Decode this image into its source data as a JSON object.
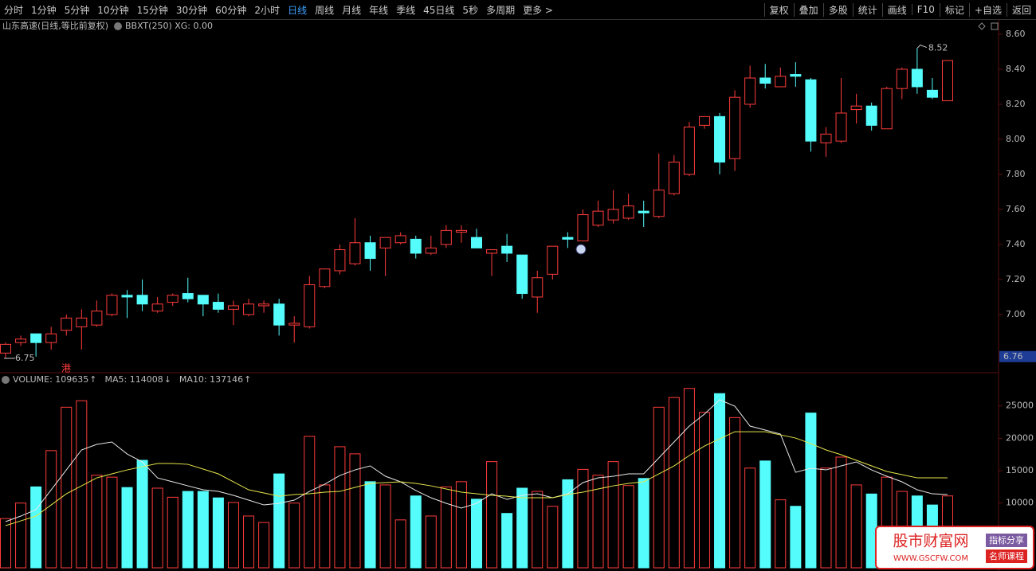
{
  "toolbar": {
    "left": [
      "分时",
      "1分钟",
      "5分钟",
      "10分钟",
      "15分钟",
      "30分钟",
      "60分钟",
      "2小时",
      "日线",
      "周线",
      "月线",
      "年线",
      "季线",
      "45日线",
      "5秒",
      "多周期",
      "更多 >"
    ],
    "active": "日线",
    "right": [
      "复权",
      "叠加",
      "多股",
      "统计",
      "画线",
      "F10",
      "标记",
      "+自选",
      "返回"
    ]
  },
  "watermark": {
    "title": "股市财富网",
    "url": "WWW.GSCFW.COM",
    "tag1": "指标分享",
    "tag2": "名师课程"
  },
  "chart_data": [
    {
      "type": "candlestick",
      "title": "山东高速(日线,等比前复权)",
      "indicator": "BBXT(250) XG: 0.00",
      "marker": "港",
      "up_color": "#ff3c3c",
      "down_color": "#54fcfc",
      "open": [
        6.78,
        6.84,
        6.89,
        6.84,
        6.91,
        6.93,
        6.94,
        7.0,
        7.11,
        7.11,
        7.02,
        7.07,
        7.12,
        7.11,
        7.07,
        7.03,
        7.0,
        7.05,
        7.06,
        6.94,
        6.93,
        7.16,
        7.25,
        7.29,
        7.41,
        7.38,
        7.41,
        7.43,
        7.35,
        7.4,
        7.47,
        7.44,
        7.35,
        7.39,
        7.34,
        7.1,
        7.23,
        7.44,
        7.42,
        7.51,
        7.54,
        7.55,
        7.59,
        7.56,
        7.69,
        7.8,
        8.08,
        8.13,
        7.89,
        8.2,
        8.35,
        8.3,
        8.37,
        8.34,
        7.98,
        7.99,
        8.17,
        8.19,
        8.06,
        8.29,
        8.4,
        8.28,
        8.22
      ],
      "high": [
        6.84,
        6.88,
        6.89,
        6.93,
        7.0,
        7.03,
        7.08,
        7.12,
        7.14,
        7.2,
        7.1,
        7.12,
        7.21,
        7.11,
        7.12,
        7.08,
        7.09,
        7.08,
        7.09,
        6.99,
        7.22,
        7.26,
        7.4,
        7.55,
        7.45,
        7.44,
        7.47,
        7.45,
        7.45,
        7.51,
        7.51,
        7.49,
        7.37,
        7.46,
        7.34,
        7.25,
        7.39,
        7.47,
        7.6,
        7.65,
        7.71,
        7.69,
        7.65,
        7.92,
        7.91,
        8.1,
        8.13,
        8.15,
        8.28,
        8.42,
        8.43,
        8.41,
        8.44,
        8.35,
        8.07,
        8.35,
        8.26,
        8.21,
        8.3,
        8.41,
        8.52,
        8.35,
        8.45
      ],
      "low": [
        6.75,
        6.82,
        6.76,
        6.8,
        6.88,
        6.8,
        6.93,
        6.99,
        6.98,
        7.02,
        7.01,
        7.05,
        7.07,
        6.99,
        7.01,
        6.94,
        6.99,
        7.01,
        6.88,
        6.84,
        6.92,
        7.15,
        7.23,
        7.28,
        7.25,
        7.22,
        7.4,
        7.32,
        7.34,
        7.38,
        7.41,
        7.38,
        7.22,
        7.3,
        7.09,
        7.01,
        7.2,
        7.38,
        7.42,
        7.5,
        7.52,
        7.54,
        7.5,
        7.55,
        7.68,
        7.79,
        8.06,
        7.8,
        7.82,
        8.18,
        8.29,
        8.3,
        8.3,
        7.93,
        7.9,
        7.98,
        8.09,
        8.05,
        8.06,
        8.23,
        8.26,
        8.23,
        8.22
      ],
      "close": [
        6.83,
        6.86,
        6.84,
        6.89,
        6.98,
        6.98,
        7.02,
        7.11,
        7.1,
        7.06,
        7.06,
        7.11,
        7.09,
        7.06,
        7.03,
        7.05,
        7.06,
        7.06,
        6.94,
        6.95,
        7.17,
        7.26,
        7.37,
        7.41,
        7.32,
        7.44,
        7.45,
        7.35,
        7.38,
        7.48,
        7.48,
        7.38,
        7.37,
        7.35,
        7.12,
        7.21,
        7.39,
        7.43,
        7.57,
        7.59,
        7.6,
        7.62,
        7.58,
        7.71,
        7.87,
        8.07,
        8.13,
        7.87,
        8.24,
        8.35,
        8.32,
        8.36,
        8.36,
        7.99,
        8.03,
        8.15,
        8.19,
        8.08,
        8.29,
        8.4,
        8.3,
        8.24,
        8.45
      ],
      "annotations": [
        {
          "text": "6.75",
          "value": 6.75
        },
        {
          "text": "8.52",
          "value": 8.52
        }
      ],
      "price_marker": {
        "value": 6.76,
        "label": "6.76",
        "color": "#1e3c96"
      },
      "ylim": [
        6.668,
        8.668
      ],
      "yticks": [
        {
          "value": 8.6,
          "label": "8.60"
        },
        {
          "value": 8.4,
          "label": "8.40"
        },
        {
          "value": 8.2,
          "label": "8.20"
        },
        {
          "value": 8.0,
          "label": "8.00"
        },
        {
          "value": 7.8,
          "label": "7.80"
        },
        {
          "value": 7.6,
          "label": "7.60"
        },
        {
          "value": 7.4,
          "label": "7.40"
        },
        {
          "value": 7.2,
          "label": "7.20"
        },
        {
          "value": 7.0,
          "label": "7.00"
        }
      ]
    },
    {
      "type": "bar",
      "legend": [
        {
          "text": "VOLUME: 109635",
          "arrow": "↑",
          "arrow_color": "#ff3c3c"
        },
        {
          "text": "MA5: 114008",
          "arrow": "↓",
          "arrow_color": "#54fcfc"
        },
        {
          "text": "MA10: 137146",
          "arrow": "↑",
          "arrow_color": "#ff3c3c"
        }
      ],
      "series": [
        {
          "up_color": "#ff3c3c",
          "down_color": "#54fcfc",
          "values": [
            7600,
            10000,
            12500,
            18100,
            24800,
            25800,
            14300,
            14000,
            12400,
            16600,
            12300,
            10900,
            11800,
            11800,
            10800,
            10100,
            8000,
            7000,
            14500,
            10000,
            20300,
            12800,
            18700,
            17600,
            13300,
            12800,
            7400,
            11100,
            8000,
            12500,
            13300,
            10600,
            16400,
            8400,
            12300,
            11800,
            9500,
            13600,
            15200,
            14300,
            16400,
            12700,
            13800,
            24800,
            26300,
            27700,
            24000,
            26900,
            23200,
            15400,
            16500,
            10500,
            9500,
            23900,
            15400,
            17100,
            12800,
            11400,
            14000,
            11800,
            11100,
            9700,
            11100
          ]
        },
        {
          "color": "#e8e8e8",
          "values": [
            7130,
            7990,
            8980,
            12050,
            15120,
            18200,
            19060,
            19430,
            17580,
            16350,
            13890,
            13280,
            12660,
            12050,
            11800,
            11190,
            10450,
            9710,
            9960,
            10450,
            11800,
            12910,
            14260,
            15120,
            15740,
            14140,
            13280,
            11930,
            10820,
            9960,
            9220,
            9960,
            11430,
            10570,
            11190,
            11430,
            10820,
            11430,
            13160,
            13890,
            14140,
            14510,
            14510,
            16970,
            19430,
            21890,
            23730,
            25940,
            24960,
            21890,
            21270,
            20660,
            14750,
            15370,
            15120,
            15740,
            16350,
            15120,
            14140,
            13280,
            12050,
            11430,
            11310
          ]
        },
        {
          "color": "#e6e64c",
          "values": [
            6520,
            7250,
            7990,
            9710,
            11430,
            12660,
            13890,
            14510,
            15120,
            15610,
            16110,
            16110,
            15980,
            15250,
            14510,
            13280,
            12050,
            11560,
            11060,
            11310,
            11430,
            11680,
            11800,
            12420,
            13030,
            13160,
            13280,
            13030,
            12660,
            12170,
            11680,
            11430,
            11190,
            11060,
            10820,
            10820,
            10820,
            11310,
            11680,
            12170,
            12660,
            13030,
            13280,
            14510,
            15740,
            17340,
            18810,
            19920,
            21020,
            21020,
            21020,
            20530,
            20040,
            19180,
            18200,
            17460,
            16600,
            15740,
            14880,
            14390,
            13890,
            13890,
            13890
          ]
        }
      ],
      "ylim": [
        0,
        28900
      ],
      "yticks": [
        25000,
        20000,
        15000,
        10000
      ]
    }
  ]
}
